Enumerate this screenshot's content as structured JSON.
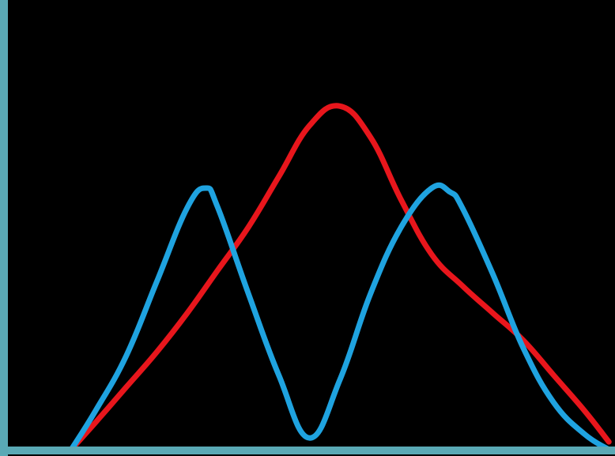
{
  "chart_data": {
    "type": "line",
    "title": "",
    "xlabel": "",
    "ylabel": "",
    "xlim": [
      0,
      1
    ],
    "ylim": [
      0,
      1
    ],
    "grid": false,
    "legend": "none",
    "series": [
      {
        "color": "#e8161c",
        "x": [
          0.11,
          0.15,
          0.2,
          0.25,
          0.3,
          0.35,
          0.4,
          0.45,
          0.5,
          0.55,
          0.6,
          0.65,
          0.7,
          0.75,
          0.8,
          0.85,
          0.9,
          0.95,
          0.99
        ],
        "y": [
          0.0,
          0.07,
          0.16,
          0.25,
          0.35,
          0.46,
          0.57,
          0.7,
          0.83,
          0.88,
          0.8,
          0.64,
          0.5,
          0.42,
          0.35,
          0.28,
          0.19,
          0.1,
          0.02
        ]
      },
      {
        "color": "#1fa3e0",
        "x": [
          0.11,
          0.15,
          0.2,
          0.25,
          0.3,
          0.33,
          0.35,
          0.4,
          0.45,
          0.5,
          0.55,
          0.6,
          0.65,
          0.7,
          0.73,
          0.75,
          0.8,
          0.85,
          0.9,
          0.95,
          0.99
        ],
        "y": [
          0.0,
          0.1,
          0.24,
          0.43,
          0.62,
          0.67,
          0.62,
          0.4,
          0.19,
          0.03,
          0.18,
          0.4,
          0.57,
          0.67,
          0.66,
          0.62,
          0.45,
          0.26,
          0.12,
          0.04,
          0.0
        ]
      }
    ],
    "axis_color": "#5aa9b5"
  }
}
